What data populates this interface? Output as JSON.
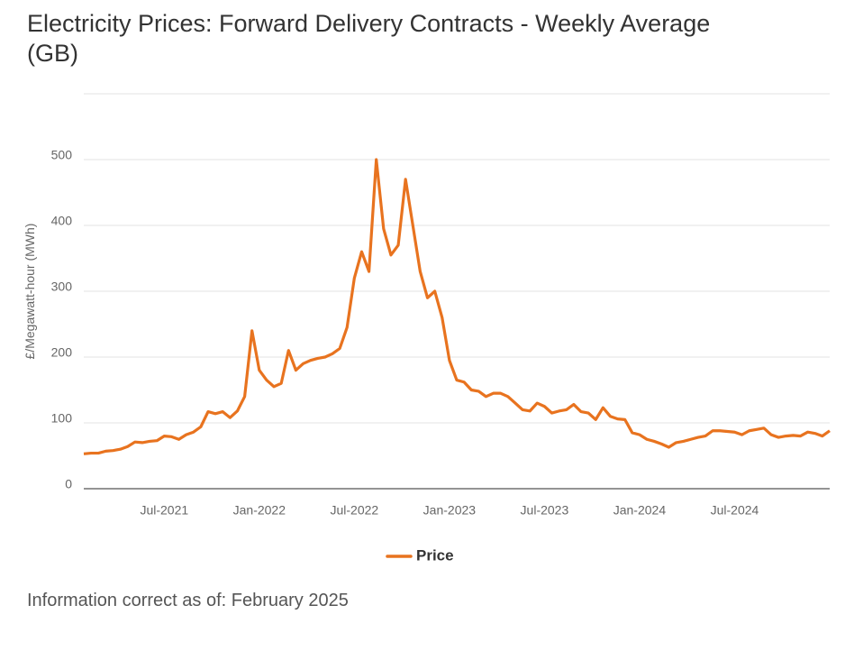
{
  "chart_data": {
    "type": "line",
    "title": "Electricity Prices: Forward Delivery Contracts - Weekly Average (GB)",
    "y_label": "£/Megawatt-hour (MWh)",
    "note": "Information correct as of: February 2025",
    "categories": [
      null,
      null,
      null,
      null,
      null,
      null,
      null,
      null,
      null,
      null,
      null,
      "Jul-2021",
      null,
      null,
      null,
      null,
      null,
      null,
      null,
      null,
      null,
      null,
      null,
      null,
      "Jan-2022",
      null,
      null,
      null,
      null,
      null,
      null,
      null,
      null,
      null,
      null,
      null,
      null,
      "Jul-2022",
      null,
      null,
      null,
      null,
      null,
      null,
      null,
      null,
      null,
      null,
      null,
      null,
      "Jan-2023",
      null,
      null,
      null,
      null,
      null,
      null,
      null,
      null,
      null,
      null,
      null,
      null,
      "Jul-2023",
      null,
      null,
      null,
      null,
      null,
      null,
      null,
      null,
      null,
      null,
      null,
      null,
      "Jan-2024",
      null,
      null,
      null,
      null,
      null,
      null,
      null,
      null,
      null,
      null,
      null,
      null,
      "Jul-2024",
      null,
      null,
      null,
      null,
      null,
      null,
      null,
      null,
      null,
      null,
      null,
      null,
      null
    ],
    "series": [
      {
        "name": "Price",
        "color": "#e8731f",
        "values": [
          53,
          54,
          54,
          57,
          58,
          60,
          64,
          71,
          70,
          72,
          73,
          80,
          79,
          75,
          82,
          86,
          94,
          117,
          114,
          117,
          108,
          118,
          140,
          240,
          180,
          165,
          155,
          160,
          210,
          180,
          190,
          195,
          198,
          200,
          205,
          213,
          245,
          320,
          360,
          330,
          500,
          395,
          355,
          370,
          470,
          400,
          330,
          290,
          300,
          260,
          195,
          165,
          162,
          150,
          148,
          140,
          145,
          145,
          140,
          130,
          120,
          118,
          130,
          125,
          115,
          118,
          120,
          128,
          117,
          115,
          105,
          123,
          110,
          106,
          105,
          85,
          82,
          75,
          72,
          68,
          63,
          70,
          72,
          75,
          78,
          80,
          88,
          88,
          87,
          86,
          82,
          88,
          90,
          92,
          82,
          78,
          80,
          81,
          80,
          86,
          84,
          80,
          88
        ]
      }
    ],
    "ylim": [
      0,
      600
    ],
    "yticks": [
      0,
      100,
      200,
      300,
      400,
      500
    ],
    "grid": true,
    "legend": "bottom"
  }
}
